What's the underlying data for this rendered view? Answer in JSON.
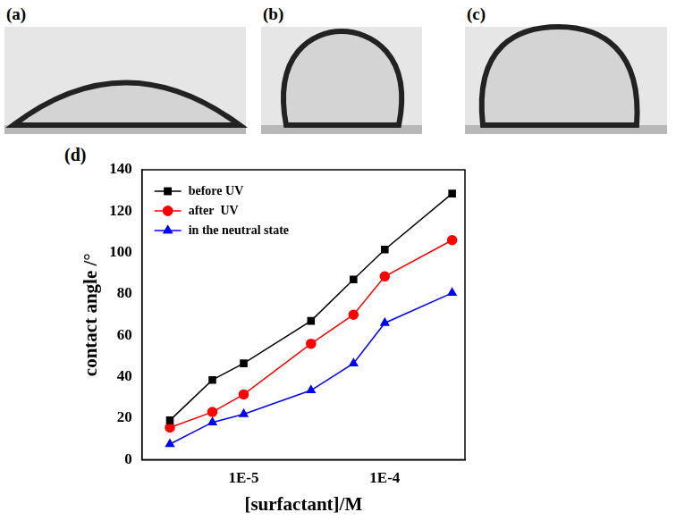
{
  "photos": [
    {
      "label": "(a)"
    },
    {
      "label": "(b)"
    },
    {
      "label": "(c)"
    }
  ],
  "chart_panel": "(d)",
  "chart_data": {
    "type": "line",
    "x_label": "[surfactant]/M",
    "y_label": "contact angle /°",
    "x": [
      3e-06,
      6e-06,
      1e-05,
      3e-05,
      6e-05,
      0.0001,
      0.0003
    ],
    "series": [
      {
        "name": "before UV",
        "color": "#000000",
        "marker": "square",
        "values": [
          19,
          38.5,
          46.5,
          67,
          87,
          101.5,
          128.5
        ]
      },
      {
        "name": "after  UV",
        "color": "#ff0000",
        "marker": "circle",
        "values": [
          15.5,
          23,
          31.5,
          56,
          70,
          88.5,
          106
        ]
      },
      {
        "name": "in the neutral state",
        "color": "#0000ff",
        "marker": "triangle",
        "values": [
          7.5,
          18,
          22,
          33.5,
          46.5,
          66,
          80.5
        ]
      }
    ],
    "log": "x",
    "xlim": [
      1.9e-06,
      0.00037
    ],
    "xticks": [
      {
        "value": 1e-05,
        "label": "1E-5"
      },
      {
        "value": 0.0001,
        "label": "1E-4"
      }
    ],
    "ylim": [
      0,
      140
    ],
    "yticks": [
      0,
      20,
      40,
      60,
      80,
      100,
      120,
      140
    ],
    "grid": false,
    "legend": "upper left"
  }
}
